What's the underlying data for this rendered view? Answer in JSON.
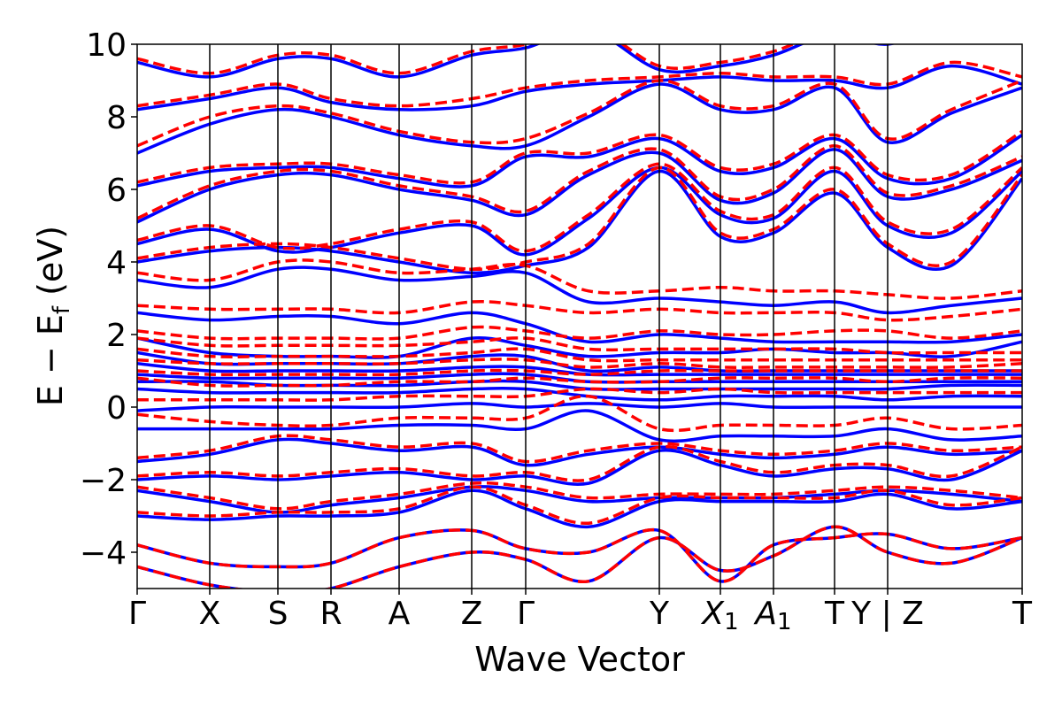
{
  "chart_data": {
    "type": "line",
    "title": "",
    "xlabel": "Wave Vector",
    "ylabel": "E − E_f (eV)",
    "ylabel_parts": {
      "lead": "E − E",
      "sub": "f",
      "tail": " (eV)"
    },
    "ylim": [
      -5,
      10
    ],
    "xlim": [
      0,
      1
    ],
    "yticks": [
      {
        "value": 10,
        "label": "10"
      },
      {
        "value": 8,
        "label": "8"
      },
      {
        "value": 6,
        "label": "6"
      },
      {
        "value": 4,
        "label": "4"
      },
      {
        "value": 2,
        "label": "2"
      },
      {
        "value": 0,
        "label": "0"
      },
      {
        "value": -2,
        "label": "−2"
      },
      {
        "value": -4,
        "label": "−4"
      }
    ],
    "kpoints": [
      {
        "x": 0.0,
        "label": "Γ"
      },
      {
        "x": 0.082,
        "label": "X"
      },
      {
        "x": 0.159,
        "label": "S"
      },
      {
        "x": 0.219,
        "label": "R"
      },
      {
        "x": 0.296,
        "label": "A"
      },
      {
        "x": 0.378,
        "label": "Z"
      },
      {
        "x": 0.439,
        "label": "Γ"
      },
      {
        "x": 0.59,
        "label": "Y"
      },
      {
        "x": 0.659,
        "label": "X",
        "sub": "1"
      },
      {
        "x": 0.719,
        "label": "A",
        "sub": "1"
      },
      {
        "x": 0.788,
        "label": "T"
      },
      {
        "x": 0.848,
        "label": "Y | Z"
      },
      {
        "x": 1.0,
        "label": "T"
      }
    ],
    "band_x": [
      0.0,
      0.082,
      0.159,
      0.219,
      0.296,
      0.378,
      0.439,
      0.51,
      0.59,
      0.659,
      0.719,
      0.788,
      0.848,
      0.92,
      1.0
    ],
    "series": [
      {
        "style": "solid",
        "color": "#0000ff",
        "bands": [
          [
            -4.4,
            -4.9,
            -5.1,
            -5.0,
            -4.4,
            -4.0,
            -4.2,
            -4.8,
            -3.6,
            -4.5,
            -4.1,
            -3.3,
            -4.0,
            -4.3,
            -3.6
          ],
          [
            -3.8,
            -4.3,
            -4.4,
            -4.3,
            -3.6,
            -3.4,
            -3.9,
            -4.0,
            -3.4,
            -4.8,
            -3.8,
            -3.6,
            -3.5,
            -3.9,
            -3.6
          ],
          [
            -3.0,
            -3.1,
            -3.0,
            -3.0,
            -2.9,
            -2.3,
            -2.8,
            -3.3,
            -2.6,
            -2.6,
            -2.6,
            -2.6,
            -2.4,
            -2.8,
            -2.6
          ],
          [
            -2.3,
            -2.6,
            -2.9,
            -2.7,
            -2.5,
            -2.2,
            -2.3,
            -2.6,
            -2.5,
            -2.5,
            -2.5,
            -2.4,
            -2.3,
            -2.4,
            -2.6
          ],
          [
            -2.0,
            -1.9,
            -2.0,
            -1.9,
            -1.8,
            -2.0,
            -1.9,
            -2.1,
            -1.2,
            -1.6,
            -1.9,
            -1.7,
            -1.7,
            -2.0,
            -1.2
          ],
          [
            -1.5,
            -1.3,
            -0.9,
            -1.0,
            -1.2,
            -1.1,
            -1.6,
            -1.3,
            -1.1,
            -1.3,
            -1.4,
            -1.3,
            -1.1,
            -1.3,
            -1.2
          ],
          [
            -0.6,
            -0.6,
            -0.6,
            -0.6,
            -0.5,
            -0.5,
            -0.6,
            -0.1,
            -0.9,
            -0.8,
            -0.8,
            -0.8,
            -0.6,
            -0.9,
            -0.8
          ],
          [
            -0.1,
            0.0,
            0.0,
            0.0,
            0.0,
            0.1,
            0.0,
            0.1,
            0.0,
            0.1,
            0.0,
            0.0,
            0.0,
            0.0,
            0.0
          ],
          [
            0.5,
            0.4,
            0.4,
            0.4,
            0.4,
            0.5,
            0.5,
            0.3,
            0.2,
            0.3,
            0.3,
            0.3,
            0.2,
            0.3,
            0.3
          ],
          [
            0.7,
            0.7,
            0.6,
            0.6,
            0.6,
            0.7,
            0.7,
            0.5,
            0.5,
            0.5,
            0.5,
            0.5,
            0.5,
            0.6,
            0.6
          ],
          [
            0.9,
            0.8,
            0.8,
            0.8,
            0.8,
            0.9,
            0.9,
            0.7,
            0.7,
            0.7,
            0.7,
            0.7,
            0.7,
            0.7,
            0.7
          ],
          [
            1.2,
            1.0,
            1.0,
            1.0,
            1.0,
            1.1,
            1.1,
            0.9,
            0.9,
            0.9,
            0.9,
            0.9,
            0.9,
            0.9,
            0.9
          ],
          [
            1.5,
            1.2,
            1.2,
            1.2,
            1.2,
            1.4,
            1.4,
            1.0,
            1.1,
            1.0,
            1.0,
            1.0,
            1.0,
            1.0,
            1.0
          ],
          [
            1.9,
            1.5,
            1.4,
            1.4,
            1.4,
            1.9,
            1.7,
            1.4,
            1.5,
            1.5,
            1.6,
            1.5,
            1.5,
            1.4,
            1.8
          ],
          [
            2.6,
            2.4,
            2.5,
            2.5,
            2.3,
            2.6,
            2.3,
            1.8,
            2.0,
            1.9,
            1.8,
            1.8,
            1.8,
            1.8,
            2.0
          ],
          [
            3.5,
            3.3,
            3.8,
            3.8,
            3.5,
            3.6,
            3.7,
            2.9,
            3.0,
            2.9,
            2.8,
            2.9,
            2.6,
            2.8,
            3.0
          ],
          [
            4.0,
            4.3,
            4.4,
            4.3,
            4.0,
            3.7,
            3.9,
            4.4,
            6.5,
            4.7,
            4.8,
            5.9,
            4.4,
            3.9,
            6.3
          ],
          [
            4.5,
            4.9,
            4.3,
            4.4,
            4.8,
            5.0,
            4.2,
            5.2,
            6.6,
            5.3,
            5.2,
            6.5,
            5.0,
            4.8,
            6.5
          ],
          [
            5.1,
            6.0,
            6.4,
            6.4,
            6.0,
            5.7,
            5.3,
            6.4,
            7.0,
            5.7,
            5.9,
            7.1,
            5.8,
            6.0,
            6.8
          ],
          [
            6.1,
            6.5,
            6.6,
            6.6,
            6.3,
            6.1,
            6.9,
            6.9,
            7.4,
            6.5,
            6.6,
            7.4,
            6.3,
            6.3,
            7.5
          ],
          [
            7.0,
            7.8,
            8.2,
            8.0,
            7.5,
            7.2,
            7.2,
            8.0,
            8.9,
            8.2,
            8.2,
            8.8,
            7.3,
            8.1,
            8.8
          ],
          [
            8.2,
            8.5,
            8.8,
            8.4,
            8.2,
            8.3,
            8.7,
            8.9,
            9.0,
            9.1,
            9.0,
            9.0,
            8.8,
            9.4,
            8.9
          ],
          [
            9.5,
            9.1,
            9.6,
            9.6,
            9.1,
            9.7,
            9.9,
            10.4,
            9.3,
            9.4,
            9.7,
            10.3,
            10.0,
            10.6,
            10.4
          ]
        ]
      },
      {
        "style": "dashed",
        "color": "#ff0000",
        "bands": [
          [
            -4.4,
            -4.9,
            -5.1,
            -5.0,
            -4.4,
            -4.0,
            -4.2,
            -4.8,
            -3.6,
            -4.5,
            -4.1,
            -3.3,
            -4.0,
            -4.3,
            -3.6
          ],
          [
            -3.8,
            -4.3,
            -4.4,
            -4.3,
            -3.6,
            -3.4,
            -3.9,
            -4.0,
            -3.4,
            -4.8,
            -3.8,
            -3.6,
            -3.5,
            -3.9,
            -3.6
          ],
          [
            -2.9,
            -3.0,
            -2.9,
            -2.9,
            -2.8,
            -2.2,
            -2.7,
            -3.2,
            -2.5,
            -2.5,
            -2.5,
            -2.5,
            -2.3,
            -2.7,
            -2.5
          ],
          [
            -2.2,
            -2.5,
            -2.8,
            -2.6,
            -2.4,
            -2.1,
            -2.2,
            -2.5,
            -2.4,
            -2.4,
            -2.4,
            -2.3,
            -2.2,
            -2.3,
            -2.5
          ],
          [
            -1.9,
            -1.8,
            -1.9,
            -1.8,
            -1.7,
            -1.9,
            -1.8,
            -2.0,
            -1.1,
            -1.5,
            -1.8,
            -1.6,
            -1.6,
            -1.9,
            -1.1
          ],
          [
            -1.4,
            -1.2,
            -0.8,
            -0.9,
            -1.1,
            -1.0,
            -1.5,
            -1.2,
            -1.0,
            -1.2,
            -1.3,
            -1.2,
            -1.0,
            -1.2,
            -1.1
          ],
          [
            -0.2,
            -0.4,
            -0.5,
            -0.5,
            -0.3,
            -0.3,
            -0.3,
            0.3,
            -0.6,
            -0.5,
            -0.5,
            -0.5,
            -0.3,
            -0.6,
            -0.5
          ],
          [
            0.2,
            0.2,
            0.2,
            0.2,
            0.3,
            0.3,
            0.3,
            0.5,
            0.4,
            0.5,
            0.4,
            0.4,
            0.4,
            0.4,
            0.4
          ],
          [
            0.8,
            0.6,
            0.6,
            0.6,
            0.7,
            0.7,
            0.8,
            0.7,
            0.7,
            0.8,
            0.8,
            0.8,
            0.7,
            0.8,
            0.8
          ],
          [
            1.0,
            0.9,
            0.9,
            0.9,
            0.9,
            1.0,
            1.0,
            0.9,
            1.0,
            1.0,
            1.0,
            1.0,
            1.0,
            1.0,
            1.0
          ],
          [
            1.3,
            1.2,
            1.2,
            1.2,
            1.2,
            1.3,
            1.3,
            1.1,
            1.2,
            1.1,
            1.1,
            1.1,
            1.1,
            1.1,
            1.2
          ],
          [
            1.6,
            1.4,
            1.4,
            1.4,
            1.4,
            1.5,
            1.6,
            1.3,
            1.3,
            1.3,
            1.3,
            1.3,
            1.3,
            1.3,
            1.3
          ],
          [
            1.9,
            1.7,
            1.7,
            1.7,
            1.7,
            1.8,
            1.9,
            1.6,
            1.6,
            1.6,
            1.6,
            1.6,
            1.5,
            1.5,
            1.5
          ],
          [
            2.1,
            1.9,
            1.9,
            1.9,
            1.9,
            2.2,
            2.1,
            1.9,
            2.1,
            2.0,
            2.0,
            2.1,
            2.1,
            1.9,
            2.1
          ],
          [
            2.8,
            2.7,
            2.7,
            2.7,
            2.6,
            2.9,
            2.8,
            2.6,
            2.7,
            2.6,
            2.6,
            2.6,
            2.4,
            2.5,
            2.7
          ],
          [
            3.7,
            3.5,
            4.0,
            4.0,
            3.7,
            3.8,
            3.9,
            3.2,
            3.2,
            3.3,
            3.2,
            3.2,
            3.1,
            3.0,
            3.2
          ],
          [
            4.1,
            4.4,
            4.5,
            4.4,
            4.1,
            3.8,
            4.0,
            4.5,
            6.6,
            4.8,
            4.9,
            6.0,
            4.5,
            4.0,
            6.4
          ],
          [
            4.6,
            5.0,
            4.4,
            4.5,
            4.9,
            5.1,
            4.3,
            5.3,
            6.7,
            5.4,
            5.3,
            6.6,
            5.1,
            4.9,
            6.6
          ],
          [
            5.2,
            6.1,
            6.5,
            6.5,
            6.1,
            5.8,
            5.4,
            6.5,
            7.1,
            5.8,
            6.0,
            7.2,
            5.9,
            6.1,
            6.9
          ],
          [
            6.2,
            6.6,
            6.7,
            6.7,
            6.4,
            6.2,
            7.0,
            7.0,
            7.5,
            6.6,
            6.7,
            7.5,
            6.4,
            6.4,
            7.6
          ],
          [
            7.2,
            8.0,
            8.3,
            8.1,
            7.6,
            7.3,
            7.4,
            8.1,
            9.0,
            8.3,
            8.3,
            8.9,
            7.4,
            8.2,
            9.0
          ],
          [
            8.3,
            8.6,
            8.9,
            8.5,
            8.3,
            8.5,
            8.8,
            9.0,
            9.1,
            9.2,
            9.1,
            9.1,
            8.9,
            9.5,
            9.1
          ],
          [
            9.6,
            9.2,
            9.7,
            9.7,
            9.2,
            9.8,
            10.0,
            10.5,
            9.4,
            9.5,
            9.8,
            10.4,
            10.1,
            10.7,
            10.5
          ]
        ]
      }
    ],
    "grid": false,
    "legend": "none"
  }
}
